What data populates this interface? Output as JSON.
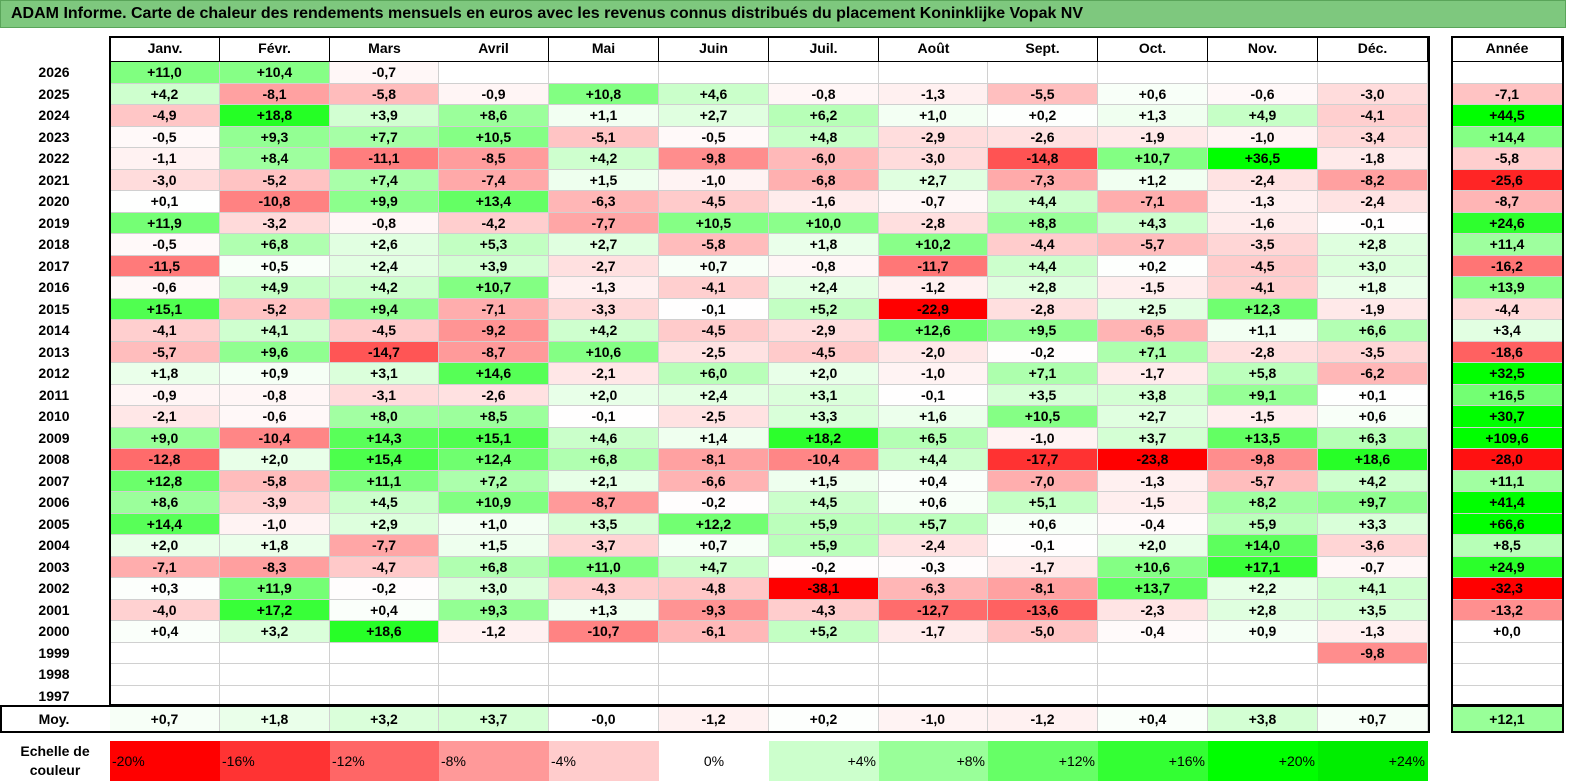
{
  "title": "ADAM Informe. Carte de chaleur des rendements mensuels en euros avec les revenus connus distribués du placement Koninklijke Vopak NV",
  "chart_data": {
    "type": "heatmap",
    "title": "ADAM Informe. Carte de chaleur des rendements mensuels en euros avec les revenus connus distribués du placement Koninklijke Vopak NV",
    "months": [
      "Janv.",
      "Févr.",
      "Mars",
      "Avril",
      "Mai",
      "Juin",
      "Juil.",
      "Août",
      "Sept.",
      "Oct.",
      "Nov.",
      "Déc."
    ],
    "year_header": "Année",
    "rows": [
      {
        "year": "2026",
        "months": [
          "+11,0",
          "+10,4",
          "-0,7",
          "",
          "",
          "",
          "",
          "",
          "",
          "",
          "",
          ""
        ],
        "annual": ""
      },
      {
        "year": "2025",
        "months": [
          "+4,2",
          "-8,1",
          "-5,8",
          "-0,9",
          "+10,8",
          "+4,6",
          "-0,8",
          "-1,3",
          "-5,5",
          "+0,6",
          "-0,6",
          "-3,0"
        ],
        "annual": "-7,1"
      },
      {
        "year": "2024",
        "months": [
          "-4,9",
          "+18,8",
          "+3,9",
          "+8,6",
          "+1,1",
          "+2,7",
          "+6,2",
          "+1,0",
          "+0,2",
          "+1,3",
          "+4,9",
          "-4,1"
        ],
        "annual": "+44,5"
      },
      {
        "year": "2023",
        "months": [
          "-0,5",
          "+9,3",
          "+7,7",
          "+10,5",
          "-5,1",
          "-0,5",
          "+4,8",
          "-2,9",
          "-2,6",
          "-1,9",
          "-1,0",
          "-3,4"
        ],
        "annual": "+14,4"
      },
      {
        "year": "2022",
        "months": [
          "-1,1",
          "+8,4",
          "-11,1",
          "-8,5",
          "+4,2",
          "-9,8",
          "-6,0",
          "-3,0",
          "-14,8",
          "+10,7",
          "+36,5",
          "-1,8"
        ],
        "annual": "-5,8"
      },
      {
        "year": "2021",
        "months": [
          "-3,0",
          "-5,2",
          "+7,4",
          "-7,4",
          "+1,5",
          "-1,0",
          "-6,8",
          "+2,7",
          "-7,3",
          "+1,2",
          "-2,4",
          "-8,2"
        ],
        "annual": "-25,6"
      },
      {
        "year": "2020",
        "months": [
          "+0,1",
          "-10,8",
          "+9,9",
          "+13,4",
          "-6,3",
          "-4,5",
          "-1,6",
          "-0,7",
          "+4,4",
          "-7,1",
          "-1,3",
          "-2,4"
        ],
        "annual": "-8,7"
      },
      {
        "year": "2019",
        "months": [
          "+11,9",
          "-3,2",
          "-0,8",
          "-4,2",
          "-7,7",
          "+10,5",
          "+10,0",
          "-2,8",
          "+8,8",
          "+4,3",
          "-1,6",
          "-0,1"
        ],
        "annual": "+24,6"
      },
      {
        "year": "2018",
        "months": [
          "-0,5",
          "+6,8",
          "+2,6",
          "+5,3",
          "+2,7",
          "-5,8",
          "+1,8",
          "+10,2",
          "-4,4",
          "-5,7",
          "-3,5",
          "+2,8"
        ],
        "annual": "+11,4"
      },
      {
        "year": "2017",
        "months": [
          "-11,5",
          "+0,5",
          "+2,4",
          "+3,9",
          "-2,7",
          "+0,7",
          "-0,8",
          "-11,7",
          "+4,4",
          "+0,2",
          "-4,5",
          "+3,0"
        ],
        "annual": "-16,2"
      },
      {
        "year": "2016",
        "months": [
          "-0,6",
          "+4,9",
          "+4,2",
          "+10,7",
          "-1,3",
          "-4,1",
          "+2,4",
          "-1,2",
          "+2,8",
          "-1,5",
          "-4,1",
          "+1,8"
        ],
        "annual": "+13,9"
      },
      {
        "year": "2015",
        "months": [
          "+15,1",
          "-5,2",
          "+9,4",
          "-7,1",
          "-3,3",
          "-0,1",
          "+5,2",
          "-22,9",
          "-2,8",
          "+2,5",
          "+12,3",
          "-1,9"
        ],
        "annual": "-4,4"
      },
      {
        "year": "2014",
        "months": [
          "-4,1",
          "+4,1",
          "-4,5",
          "-9,2",
          "+4,2",
          "-4,5",
          "-2,9",
          "+12,6",
          "+9,5",
          "-6,5",
          "+1,1",
          "+6,6"
        ],
        "annual": "+3,4"
      },
      {
        "year": "2013",
        "months": [
          "-5,7",
          "+9,6",
          "-14,7",
          "-8,7",
          "+10,6",
          "-2,5",
          "-4,5",
          "-2,0",
          "-0,2",
          "+7,1",
          "-2,8",
          "-3,5"
        ],
        "annual": "-18,6"
      },
      {
        "year": "2012",
        "months": [
          "+1,8",
          "+0,9",
          "+3,1",
          "+14,6",
          "-2,1",
          "+6,0",
          "+2,0",
          "-1,0",
          "+7,1",
          "-1,7",
          "+5,8",
          "-6,2"
        ],
        "annual": "+32,5"
      },
      {
        "year": "2011",
        "months": [
          "-0,9",
          "-0,8",
          "-3,1",
          "-2,6",
          "+2,0",
          "+2,4",
          "+3,1",
          "-0,1",
          "+3,5",
          "+3,8",
          "+9,1",
          "+0,1"
        ],
        "annual": "+16,5"
      },
      {
        "year": "2010",
        "months": [
          "-2,1",
          "-0,6",
          "+8,0",
          "+8,5",
          "-0,1",
          "-2,5",
          "+3,3",
          "+1,6",
          "+10,5",
          "+2,7",
          "-1,5",
          "+0,6"
        ],
        "annual": "+30,7"
      },
      {
        "year": "2009",
        "months": [
          "+9,0",
          "-10,4",
          "+14,3",
          "+15,1",
          "+4,6",
          "+1,4",
          "+18,2",
          "+6,5",
          "-1,0",
          "+3,7",
          "+13,5",
          "+6,3"
        ],
        "annual": "+109,6"
      },
      {
        "year": "2008",
        "months": [
          "-12,8",
          "+2,0",
          "+15,4",
          "+12,4",
          "+6,8",
          "-8,1",
          "-10,4",
          "+4,4",
          "-17,7",
          "-23,8",
          "-9,8",
          "+18,6"
        ],
        "annual": "-28,0"
      },
      {
        "year": "2007",
        "months": [
          "+12,8",
          "-5,8",
          "+11,1",
          "+7,2",
          "+2,1",
          "-6,6",
          "+1,5",
          "+0,4",
          "-7,0",
          "-1,3",
          "-5,7",
          "+4,2"
        ],
        "annual": "+11,1"
      },
      {
        "year": "2006",
        "months": [
          "+8,6",
          "-3,9",
          "+4,5",
          "+10,9",
          "-8,7",
          "-0,2",
          "+4,5",
          "+0,6",
          "+5,1",
          "-1,5",
          "+8,2",
          "+9,7"
        ],
        "annual": "+41,4"
      },
      {
        "year": "2005",
        "months": [
          "+14,4",
          "-1,0",
          "+2,9",
          "+1,0",
          "+3,5",
          "+12,2",
          "+5,9",
          "+5,7",
          "+0,6",
          "-0,4",
          "+5,9",
          "+3,3"
        ],
        "annual": "+66,6"
      },
      {
        "year": "2004",
        "months": [
          "+2,0",
          "+1,8",
          "-7,7",
          "+1,5",
          "-3,7",
          "+0,7",
          "+5,9",
          "-2,4",
          "-0,1",
          "+2,0",
          "+14,0",
          "-3,6"
        ],
        "annual": "+8,5"
      },
      {
        "year": "2003",
        "months": [
          "-7,1",
          "-8,3",
          "-4,7",
          "+6,8",
          "+11,0",
          "+4,7",
          "-0,2",
          "-0,3",
          "-1,7",
          "+10,6",
          "+17,1",
          "-0,7"
        ],
        "annual": "+24,9"
      },
      {
        "year": "2002",
        "months": [
          "+0,3",
          "+11,9",
          "-0,2",
          "+3,0",
          "-4,3",
          "-4,8",
          "-38,1",
          "-6,3",
          "-8,1",
          "+13,7",
          "+2,2",
          "+4,1"
        ],
        "annual": "-32,3"
      },
      {
        "year": "2001",
        "months": [
          "-4,0",
          "+17,2",
          "+0,4",
          "+9,3",
          "+1,3",
          "-9,3",
          "-4,3",
          "-12,7",
          "-13,6",
          "-2,3",
          "+2,8",
          "+3,5"
        ],
        "annual": "-13,2"
      },
      {
        "year": "2000",
        "months": [
          "+0,4",
          "+3,2",
          "+18,6",
          "-1,2",
          "-10,7",
          "-6,1",
          "+5,2",
          "-1,7",
          "-5,0",
          "-0,4",
          "+0,9",
          "-1,3"
        ],
        "annual": "+0,0"
      },
      {
        "year": "1999",
        "months": [
          "",
          "",
          "",
          "",
          "",
          "",
          "",
          "",
          "",
          "",
          "",
          "-9,8"
        ],
        "annual": ""
      },
      {
        "year": "1998",
        "months": [
          "",
          "",
          "",
          "",
          "",
          "",
          "",
          "",
          "",
          "",
          "",
          ""
        ],
        "annual": ""
      },
      {
        "year": "1997",
        "months": [
          "",
          "",
          "",
          "",
          "",
          "",
          "",
          "",
          "",
          "",
          "",
          ""
        ],
        "annual": ""
      }
    ],
    "average": {
      "label": "Moy.",
      "months": [
        "+0,7",
        "+1,8",
        "+3,2",
        "+3,7",
        "-0,0",
        "-1,2",
        "+0,2",
        "-1,0",
        "-1,2",
        "+0,4",
        "+3,8",
        "+0,7"
      ],
      "annual": "+12,1"
    },
    "scale": {
      "label": "Echelle de couleur",
      "steps": [
        "-20%",
        "-16%",
        "-12%",
        "-8%",
        "-4%",
        "0%",
        "+4%",
        "+8%",
        "+12%",
        "+16%",
        "+20%",
        "+24%"
      ],
      "colors": [
        "#ff0000",
        "#ff3333",
        "#ff6666",
        "#ff9999",
        "#ffcccc",
        "#ffffff",
        "#ccffcc",
        "#99ff99",
        "#66ff66",
        "#33ff33",
        "#00ff00",
        "#00ee00"
      ]
    }
  },
  "colors": {
    "title_bg": "#7ec87e",
    "positive_max": "#00ff00",
    "negative_max": "#ff0000"
  }
}
